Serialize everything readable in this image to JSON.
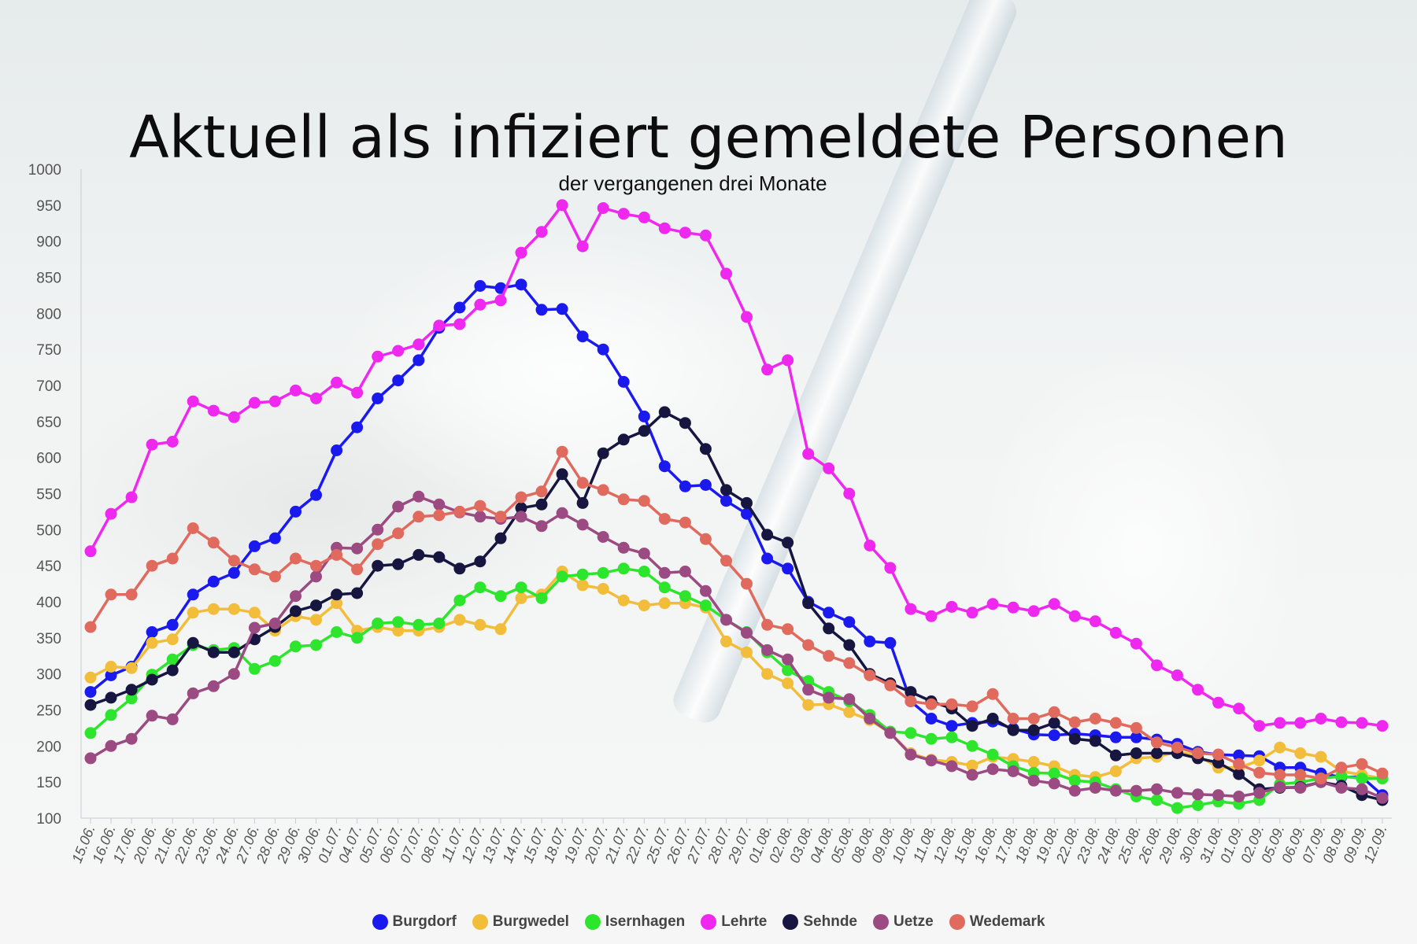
{
  "chart_data": {
    "type": "line",
    "title": "Aktuell als infiziert gemeldete Personen",
    "subtitle": "der vergangenen drei Monate",
    "ylim": [
      100,
      1000
    ],
    "yticks": [
      100,
      150,
      200,
      250,
      300,
      350,
      400,
      450,
      500,
      550,
      600,
      650,
      700,
      750,
      800,
      850,
      900,
      950,
      1000
    ],
    "grid": false,
    "legend": "bottom",
    "categories": [
      "15.06.",
      "16.06.",
      "17.06.",
      "20.06.",
      "21.06.",
      "22.06.",
      "23.06.",
      "24.06.",
      "27.06.",
      "28.06.",
      "29.06.",
      "30.06.",
      "01.07.",
      "04.07.",
      "05.07.",
      "06.07.",
      "07.07.",
      "08.07.",
      "11.07.",
      "12.07.",
      "13.07.",
      "14.07.",
      "15.07.",
      "18.07.",
      "19.07.",
      "20.07.",
      "21.07.",
      "22.07.",
      "25.07.",
      "26.07.",
      "27.07.",
      "28.07.",
      "29.07.",
      "01.08.",
      "02.08.",
      "03.08.",
      "04.08.",
      "05.08.",
      "08.08.",
      "09.08.",
      "10.08.",
      "11.08.",
      "12.08.",
      "15.08.",
      "16.08.",
      "17.08.",
      "18.08.",
      "19.08.",
      "22.08.",
      "23.08.",
      "24.08.",
      "25.08.",
      "26.08.",
      "29.08.",
      "30.08.",
      "31.08.",
      "01.09.",
      "02.09.",
      "05.09.",
      "06.09.",
      "07.09.",
      "08.09.",
      "09.09.",
      "12.09."
    ],
    "series": [
      {
        "name": "Burgdorf",
        "color": "#1a1aee",
        "values": [
          275,
          298,
          310,
          358,
          368,
          410,
          428,
          440,
          477,
          488,
          525,
          548,
          610,
          642,
          682,
          707,
          735,
          780,
          808,
          838,
          835,
          840,
          805,
          806,
          768,
          750,
          705,
          657,
          588,
          560,
          562,
          540,
          522,
          460,
          446,
          400,
          385,
          372,
          345,
          343,
          262,
          238,
          228,
          232,
          234,
          224,
          216,
          215,
          217,
          215,
          212,
          212,
          209,
          203,
          192,
          188,
          187,
          186,
          170,
          170,
          162,
          157,
          157,
          132
        ]
      },
      {
        "name": "Burgwedel",
        "color": "#f2bd3a",
        "values": [
          295,
          310,
          308,
          343,
          348,
          385,
          390,
          390,
          385,
          360,
          380,
          375,
          398,
          360,
          365,
          360,
          360,
          365,
          375,
          368,
          362,
          405,
          410,
          442,
          423,
          418,
          402,
          395,
          398,
          398,
          392,
          345,
          330,
          300,
          287,
          257,
          258,
          247,
          236,
          218,
          190,
          181,
          178,
          173,
          185,
          182,
          178,
          172,
          160,
          157,
          165,
          183,
          185,
          192,
          187,
          170,
          170,
          180,
          198,
          190,
          185,
          165,
          160,
          155
        ]
      },
      {
        "name": "Isernhagen",
        "color": "#2ee52e",
        "values": [
          218,
          243,
          266,
          299,
          320,
          340,
          333,
          336,
          307,
          318,
          338,
          340,
          358,
          350,
          370,
          372,
          368,
          370,
          402,
          420,
          408,
          420,
          405,
          435,
          438,
          440,
          446,
          442,
          420,
          408,
          395,
          375,
          358,
          330,
          305,
          290,
          275,
          262,
          243,
          220,
          218,
          210,
          212,
          200,
          188,
          172,
          163,
          162,
          152,
          150,
          140,
          130,
          125,
          114,
          118,
          123,
          120,
          125,
          147,
          150,
          155,
          158,
          155,
          155
        ]
      },
      {
        "name": "Lehrte",
        "color": "#ee28ee",
        "values": [
          470,
          522,
          545,
          618,
          622,
          678,
          665,
          656,
          676,
          678,
          693,
          682,
          704,
          690,
          740,
          748,
          757,
          783,
          785,
          812,
          818,
          884,
          913,
          950,
          893,
          946,
          938,
          933,
          918,
          912,
          908,
          855,
          795,
          722,
          735,
          605,
          585,
          550,
          478,
          447,
          390,
          380,
          393,
          385,
          397,
          392,
          387,
          397,
          380,
          373,
          357,
          342,
          312,
          298,
          278,
          260,
          252,
          228,
          232,
          232,
          238,
          233,
          232,
          228
        ]
      },
      {
        "name": "Sehnde",
        "color": "#161640",
        "values": [
          257,
          267,
          278,
          292,
          305,
          343,
          330,
          330,
          348,
          365,
          387,
          395,
          410,
          412,
          450,
          452,
          465,
          462,
          446,
          456,
          488,
          530,
          535,
          577,
          537,
          606,
          625,
          637,
          663,
          648,
          612,
          555,
          537,
          493,
          482,
          398,
          363,
          340,
          300,
          287,
          275,
          262,
          252,
          228,
          238,
          222,
          222,
          232,
          210,
          207,
          187,
          190,
          190,
          190,
          183,
          177,
          161,
          140,
          142,
          143,
          150,
          145,
          132,
          125
        ]
      },
      {
        "name": "Uetze",
        "color": "#9c4a82",
        "values": [
          183,
          200,
          210,
          242,
          237,
          273,
          283,
          300,
          364,
          370,
          408,
          435,
          475,
          474,
          500,
          532,
          546,
          535,
          524,
          518,
          515,
          518,
          505,
          523,
          507,
          490,
          475,
          467,
          440,
          442,
          415,
          375,
          357,
          333,
          320,
          278,
          267,
          265,
          238,
          218,
          188,
          180,
          172,
          160,
          168,
          165,
          152,
          148,
          138,
          142,
          138,
          138,
          140,
          135,
          133,
          132,
          130,
          135,
          143,
          142,
          150,
          142,
          140,
          128
        ]
      },
      {
        "name": "Wedemark",
        "color": "#e06a5e",
        "values": [
          365,
          410,
          410,
          450,
          460,
          502,
          482,
          457,
          445,
          435,
          460,
          450,
          465,
          445,
          480,
          495,
          518,
          520,
          525,
          533,
          518,
          545,
          553,
          608,
          565,
          555,
          542,
          540,
          515,
          510,
          487,
          457,
          425,
          368,
          362,
          340,
          325,
          315,
          298,
          284,
          262,
          258,
          258,
          255,
          272,
          238,
          238,
          247,
          233,
          238,
          232,
          225,
          205,
          198,
          190,
          188,
          175,
          163,
          160,
          160,
          155,
          170,
          175,
          162
        ]
      }
    ]
  }
}
